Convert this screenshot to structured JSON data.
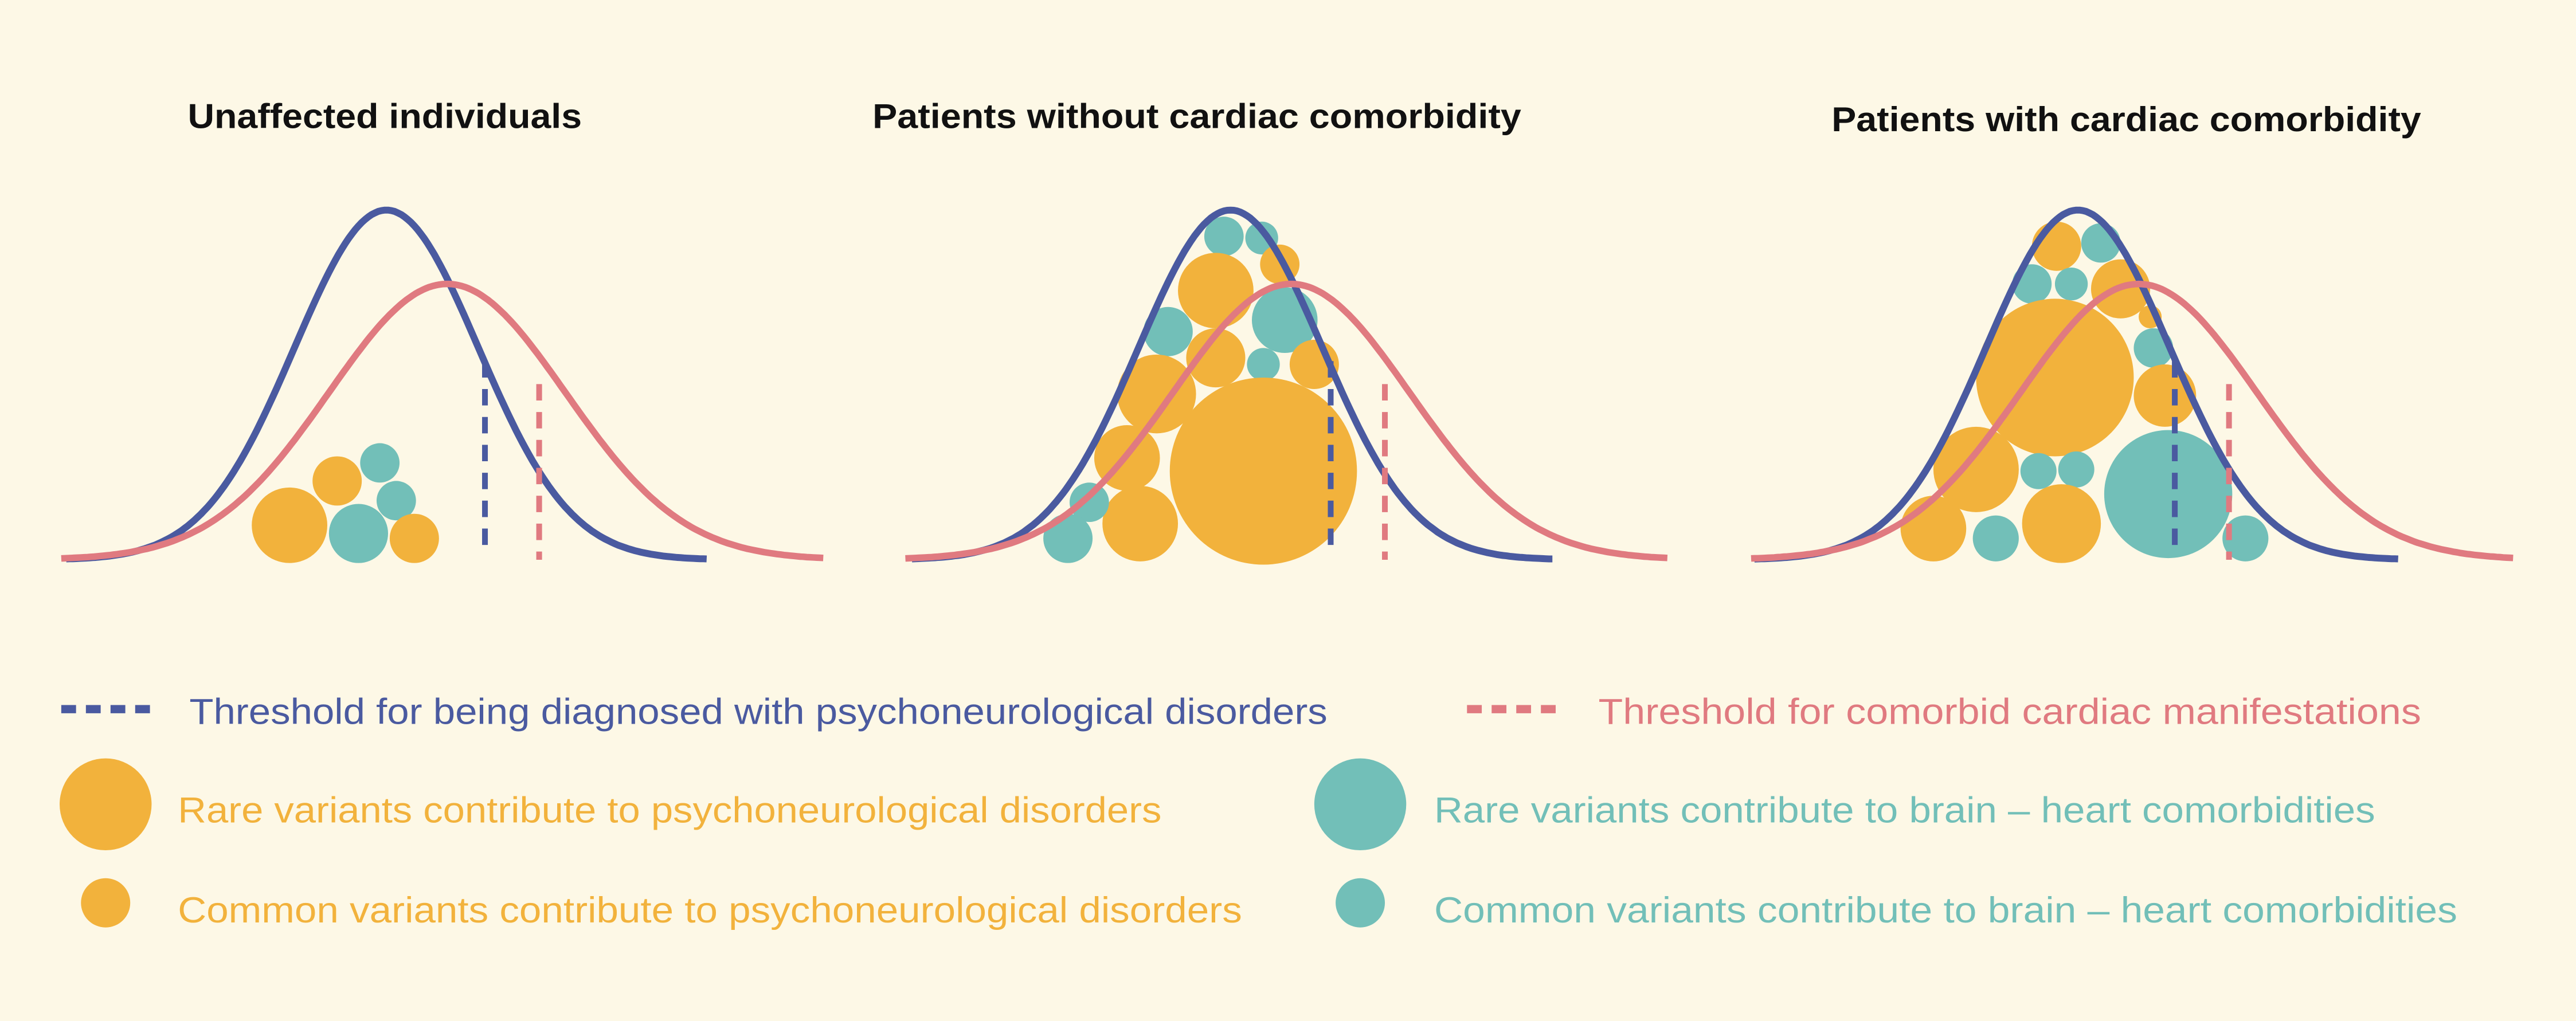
{
  "colors": {
    "background": "#fdf8e6",
    "threshold_psychoneurological": "#4a5aa0",
    "threshold_cardiac": "#e07a80",
    "psychoneurological_variants": "#f2b23c",
    "brain_heart_variants": "#72bfb8"
  },
  "panels": [
    {
      "title": "Unaffected individuals"
    },
    {
      "title": "Patients without cardiac comorbidity"
    },
    {
      "title": "Patients with cardiac comorbidity"
    }
  ],
  "legend": {
    "threshold_psychoneurological": "Threshold for being diagnosed with psychoneurological disorders",
    "threshold_cardiac": "Threshold for comorbid cardiac manifestations",
    "rare_psychoneurological": "Rare variants contribute to psychoneurological disorders",
    "common_psychoneurological": "Common variants contribute to psychoneurological disorders",
    "rare_brain_heart": "Rare variants contribute to brain – heart comorbidities",
    "common_brain_heart": "Common variants contribute to brain – heart comorbidities"
  }
}
